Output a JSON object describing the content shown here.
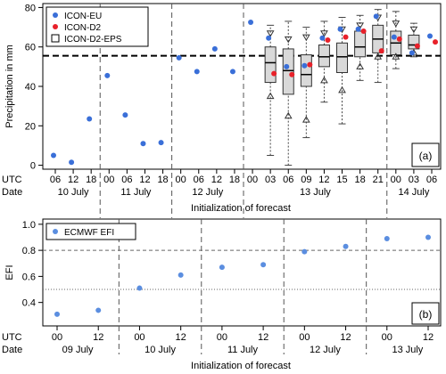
{
  "chart_data": [
    {
      "type": "scatter",
      "panel_label": "(a)",
      "ylabel": "Precipitation in mm",
      "xlabel": "Initialization of forecast",
      "ylim": [
        -2,
        82
      ],
      "yticks": [
        0,
        20,
        40,
        60,
        80
      ],
      "hline": 55.5,
      "row_labels": [
        "UTC",
        "Date"
      ],
      "slots": [
        "06",
        "12",
        "18",
        "00",
        "06",
        "12",
        "18",
        "00",
        "06",
        "12",
        "18",
        "00",
        "03",
        "06",
        "09",
        "12",
        "15",
        "18",
        "21",
        "00",
        "03",
        "06"
      ],
      "date_groups": [
        {
          "label": "10 July",
          "from": 0,
          "to": 2
        },
        {
          "label": "11 July",
          "from": 3,
          "to": 6
        },
        {
          "label": "12 July",
          "from": 7,
          "to": 10
        },
        {
          "label": "13 July",
          "from": 11,
          "to": 18
        },
        {
          "label": "14 July",
          "from": 19,
          "to": 21
        }
      ],
      "legend": [
        {
          "label": "ICON-EU",
          "marker": "dot",
          "color": "#3a6fd8"
        },
        {
          "label": "ICON-D2",
          "marker": "dot",
          "color": "#e8212a"
        },
        {
          "label": "ICON-D2-EPS",
          "marker": "box",
          "color": "#d9d9d9"
        }
      ],
      "series": [
        {
          "name": "ICON-EU",
          "color": "#3a6fd8",
          "points": [
            [
              0,
              5
            ],
            [
              1,
              1.5
            ],
            [
              2,
              23.5
            ],
            [
              3,
              45.5
            ],
            [
              4,
              25.5
            ],
            [
              5,
              11
            ],
            [
              6,
              11.5
            ],
            [
              7,
              54.5
            ],
            [
              8,
              47.5
            ],
            [
              9,
              59
            ],
            [
              10,
              47.5
            ],
            [
              11,
              72.5
            ],
            [
              12,
              64.5
            ],
            [
              13,
              50
            ],
            [
              14,
              50.5
            ],
            [
              15,
              64.5
            ],
            [
              16,
              69
            ],
            [
              17,
              69
            ],
            [
              18,
              75.5
            ],
            [
              19,
              65
            ],
            [
              20,
              57
            ],
            [
              21,
              65.5
            ]
          ]
        },
        {
          "name": "ICON-D2",
          "color": "#e8212a",
          "points": [
            [
              12,
              46.5
            ],
            [
              13,
              46
            ],
            [
              14,
              51
            ],
            [
              15,
              63.5
            ],
            [
              16,
              65
            ],
            [
              17,
              68
            ],
            [
              18,
              58
            ],
            [
              19,
              64
            ],
            [
              20,
              60.5
            ],
            [
              21,
              62.5
            ]
          ]
        }
      ],
      "boxes": [
        {
          "slot": 12,
          "min": 5,
          "q1": 42,
          "median": 52,
          "q3": 60,
          "max": 71,
          "low": 35,
          "high": 67
        },
        {
          "slot": 13,
          "min": 0,
          "q1": 36,
          "median": 48,
          "q3": 59,
          "max": 73,
          "low": 25,
          "high": 64
        },
        {
          "slot": 14,
          "min": 14,
          "q1": 40,
          "median": 46,
          "q3": 56,
          "max": 70,
          "low": 23,
          "high": 65
        },
        {
          "slot": 15,
          "min": 32,
          "q1": 50,
          "median": 55,
          "q3": 61,
          "max": 73,
          "low": 43,
          "high": 67
        },
        {
          "slot": 16,
          "min": 21,
          "q1": 47,
          "median": 55,
          "q3": 62,
          "max": 75,
          "low": 38,
          "high": 69
        },
        {
          "slot": 17,
          "min": 43,
          "q1": 55,
          "median": 60,
          "q3": 68,
          "max": 76,
          "low": 50,
          "high": 71
        },
        {
          "slot": 18,
          "min": 42,
          "q1": 57,
          "median": 64,
          "q3": 71,
          "max": 79,
          "low": 55,
          "high": 75
        },
        {
          "slot": 19,
          "min": 49,
          "q1": 56,
          "median": 62,
          "q3": 68,
          "max": 78,
          "low": 55,
          "high": 72
        },
        {
          "slot": 20,
          "min": 55,
          "q1": 59,
          "median": 61,
          "q3": 66,
          "max": 72,
          "low": 57,
          "high": 69
        }
      ]
    },
    {
      "type": "scatter",
      "panel_label": "(b)",
      "ylabel": "EFI",
      "xlabel": "Initialization of forecast",
      "ylim": [
        0.22,
        1.04
      ],
      "yticks": [
        0.4,
        0.6,
        0.8,
        1.0
      ],
      "yticklabels": [
        "0.4",
        "0.6",
        "0.8",
        "1.0"
      ],
      "hlines": [
        {
          "y": 0.8,
          "style": "dashed"
        },
        {
          "y": 0.5,
          "style": "dotted"
        }
      ],
      "row_labels": [
        "UTC",
        "Date"
      ],
      "slots": [
        "00",
        "12",
        "00",
        "12",
        "00",
        "12",
        "00",
        "12",
        "00",
        "12"
      ],
      "date_groups": [
        {
          "label": "09 July",
          "from": 0,
          "to": 1
        },
        {
          "label": "10 July",
          "from": 2,
          "to": 3
        },
        {
          "label": "11 July",
          "from": 4,
          "to": 5
        },
        {
          "label": "12 July",
          "from": 6,
          "to": 7
        },
        {
          "label": "13 July",
          "from": 8,
          "to": 9
        }
      ],
      "legend": [
        {
          "label": "ECMWF EFI",
          "marker": "dot",
          "color": "#5b8ee0"
        }
      ],
      "series": [
        {
          "name": "ECMWF EFI",
          "color": "#5b8ee0",
          "points": [
            [
              0,
              0.31
            ],
            [
              1,
              0.34
            ],
            [
              2,
              0.51
            ],
            [
              3,
              0.61
            ],
            [
              4,
              0.67
            ],
            [
              5,
              0.69
            ],
            [
              6,
              0.79
            ],
            [
              7,
              0.83
            ],
            [
              8,
              0.89
            ],
            [
              9,
              0.9
            ]
          ]
        }
      ]
    }
  ]
}
